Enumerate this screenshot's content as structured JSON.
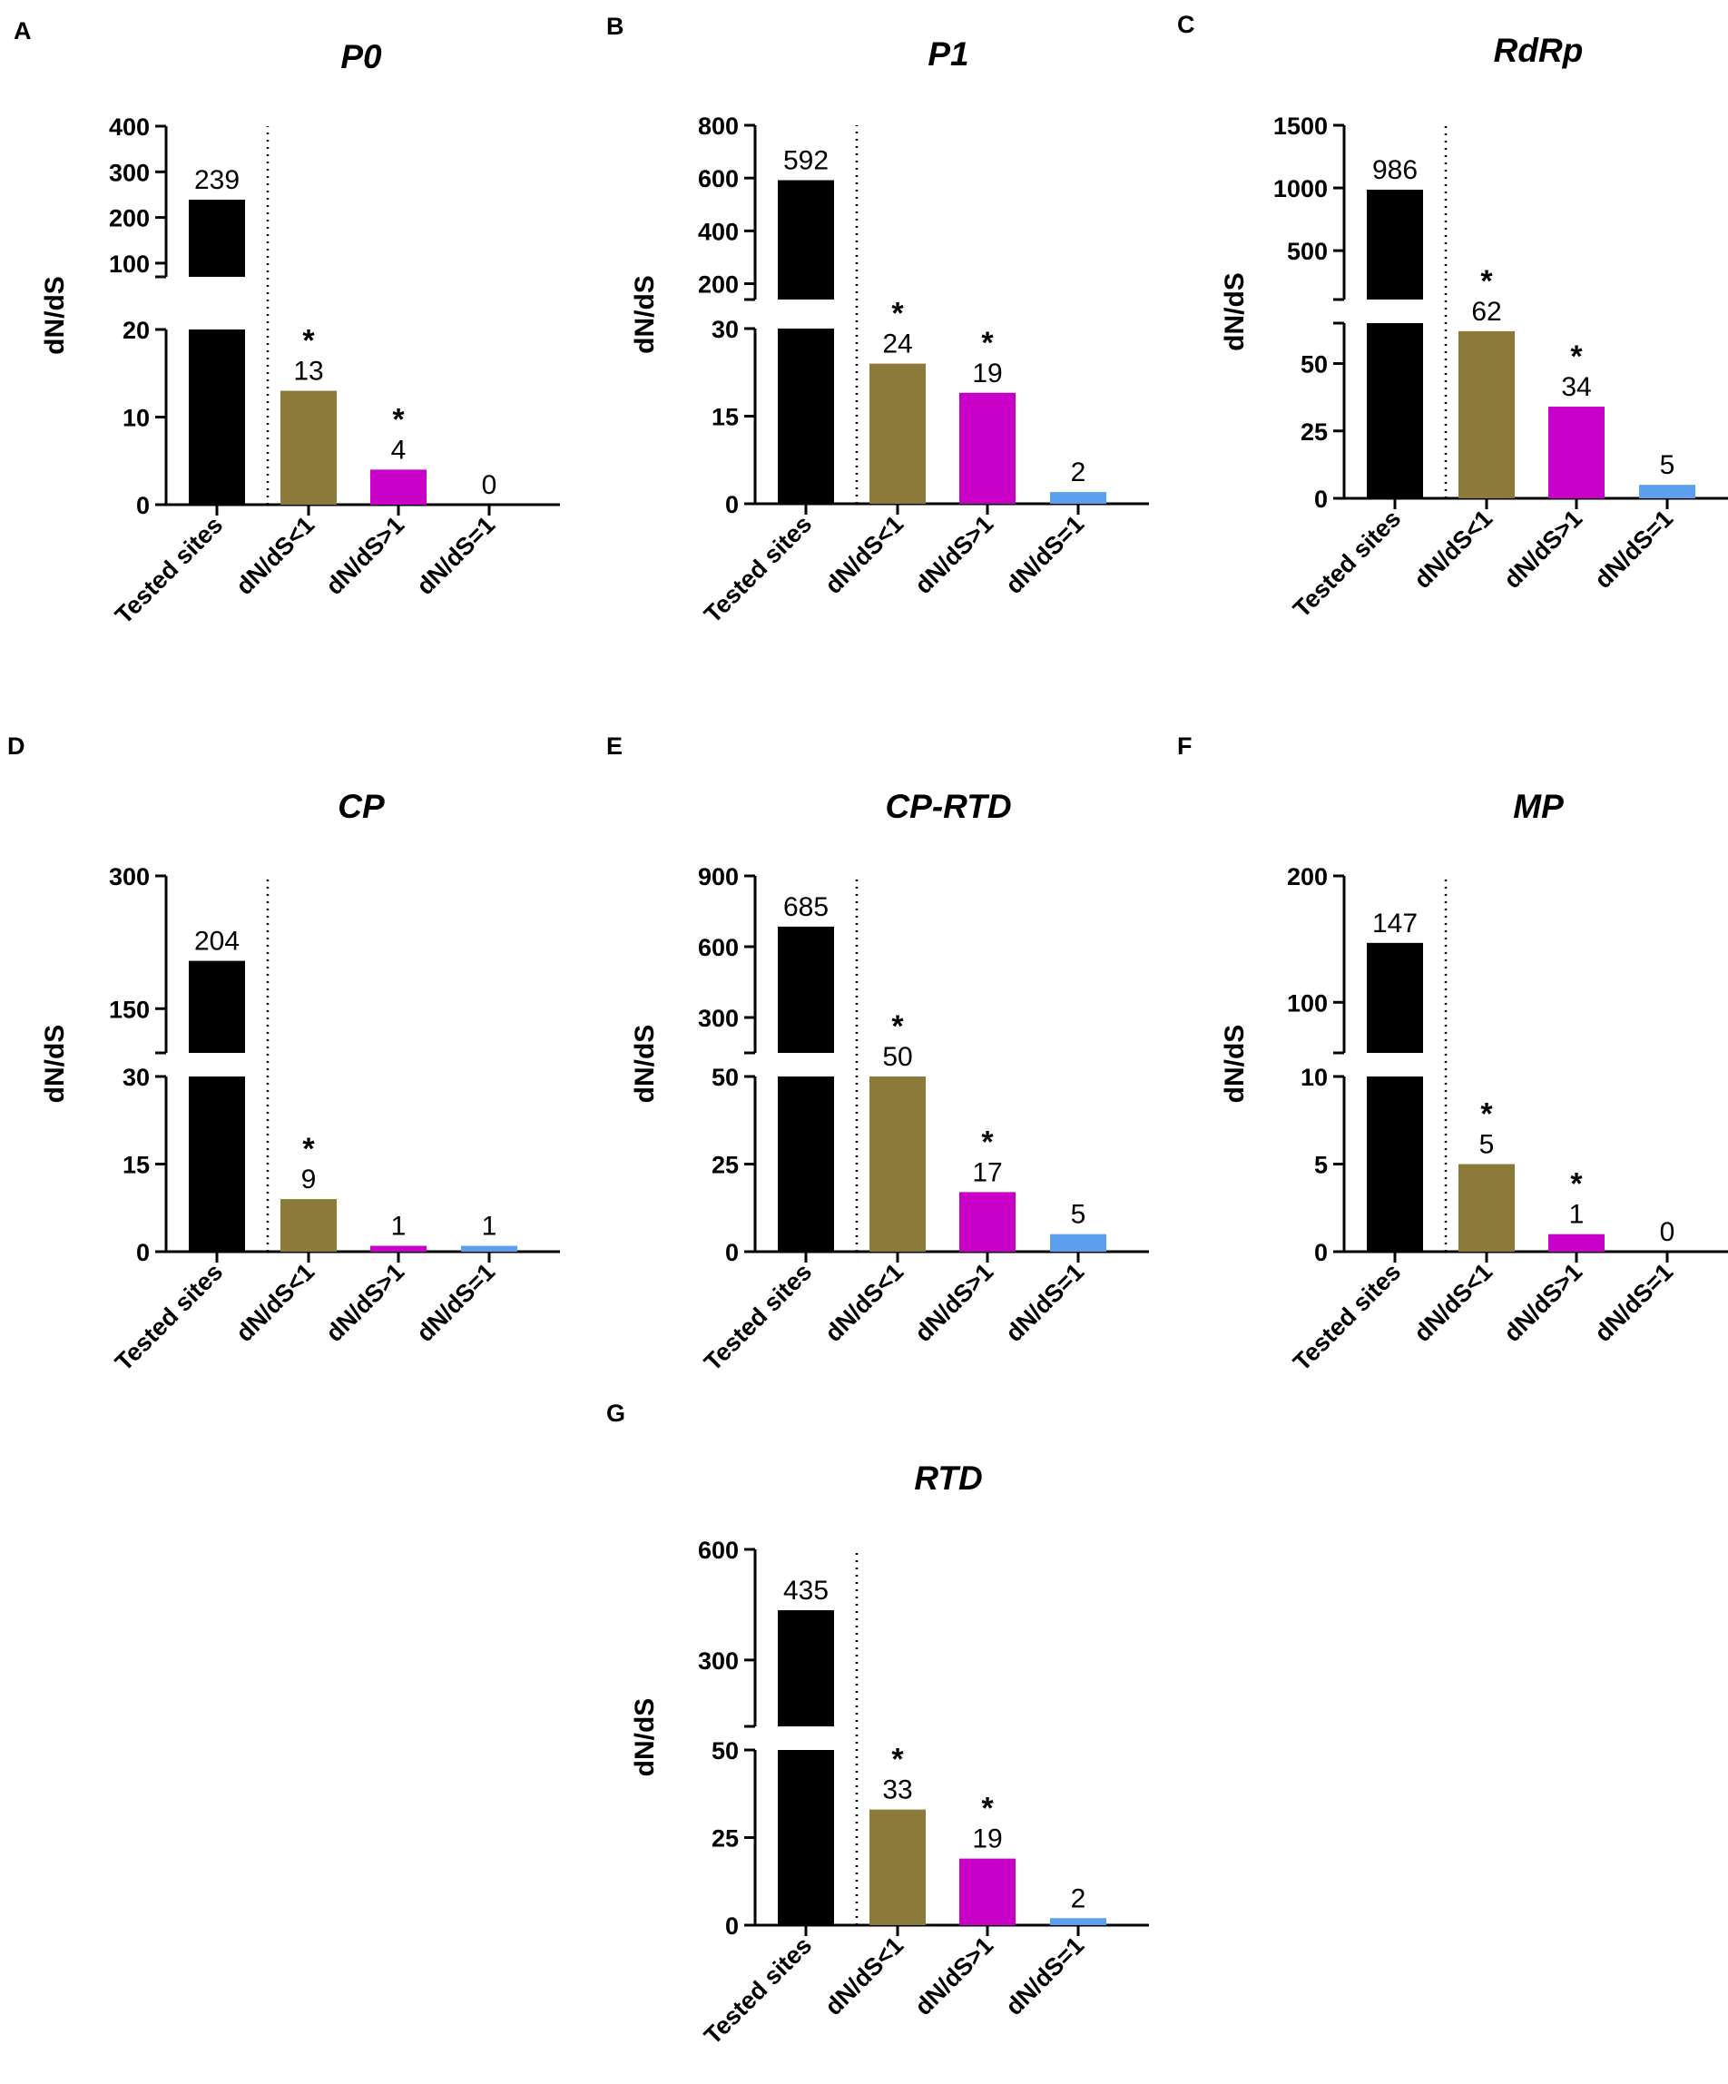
{
  "figure": {
    "ylabel": "dN/dS",
    "categories": [
      "Tested sites",
      "dN/dS<1",
      "dN/dS>1",
      "dN/dS=1"
    ],
    "colors": [
      "#000000",
      "#8b7a39",
      "#c800c8",
      "#5aa0ee"
    ]
  },
  "chart_data": [
    {
      "panel": "A",
      "type": "bar",
      "title": "P0",
      "ylabel": "dN/dS",
      "categories": [
        "Tested sites",
        "dN/dS<1",
        "dN/dS>1",
        "dN/dS=1"
      ],
      "values": [
        239,
        13,
        4,
        0
      ],
      "value_labels": [
        "239",
        "13",
        "4",
        "0"
      ],
      "significant": [
        false,
        true,
        true,
        false
      ],
      "axis_break": {
        "lower_range": [
          0,
          20
        ],
        "upper_range": [
          70,
          400
        ]
      },
      "lower_ticks": [
        "0",
        "10",
        "20"
      ],
      "lower_tick_values": [
        0,
        10,
        20
      ],
      "upper_ticks": [
        "100",
        "200",
        "300",
        "400"
      ],
      "upper_tick_values": [
        100,
        200,
        300,
        400
      ]
    },
    {
      "panel": "B",
      "type": "bar",
      "title": "P1",
      "ylabel": "dN/dS",
      "categories": [
        "Tested sites",
        "dN/dS<1",
        "dN/dS>1",
        "dN/dS=1"
      ],
      "values": [
        592,
        24,
        19,
        2
      ],
      "value_labels": [
        "592",
        "24",
        "19",
        "2"
      ],
      "significant": [
        false,
        true,
        true,
        false
      ],
      "axis_break": {
        "lower_range": [
          0,
          30
        ],
        "upper_range": [
          140,
          800
        ]
      },
      "lower_ticks": [
        "0",
        "15",
        "30"
      ],
      "lower_tick_values": [
        0,
        15,
        30
      ],
      "upper_ticks": [
        "200",
        "400",
        "600",
        "800"
      ],
      "upper_tick_values": [
        200,
        400,
        600,
        800
      ]
    },
    {
      "panel": "C",
      "type": "bar",
      "title": "RdRp",
      "ylabel": "dN/dS",
      "categories": [
        "Tested sites",
        "dN/dS<1",
        "dN/dS>1",
        "dN/dS=1"
      ],
      "values": [
        986,
        62,
        34,
        5
      ],
      "value_labels": [
        "986",
        "62",
        "34",
        "5"
      ],
      "significant": [
        false,
        true,
        true,
        false
      ],
      "axis_break": {
        "lower_range": [
          0,
          65
        ],
        "upper_range": [
          110,
          1500
        ]
      },
      "lower_ticks": [
        "0",
        "25",
        "50"
      ],
      "lower_tick_values": [
        0,
        25,
        50
      ],
      "upper_ticks": [
        "500",
        "1000",
        "1500"
      ],
      "upper_tick_values": [
        500,
        1000,
        1500
      ]
    },
    {
      "panel": "D",
      "type": "bar",
      "title": "CP",
      "ylabel": "dN/dS",
      "categories": [
        "Tested sites",
        "dN/dS<1",
        "dN/dS>1",
        "dN/dS=1"
      ],
      "values": [
        204,
        9,
        1,
        1
      ],
      "value_labels": [
        "204",
        "9",
        "1",
        "1"
      ],
      "significant": [
        false,
        true,
        false,
        false
      ],
      "axis_break": {
        "lower_range": [
          0,
          30
        ],
        "upper_range": [
          100,
          300
        ]
      },
      "lower_ticks": [
        "0",
        "15",
        "30"
      ],
      "lower_tick_values": [
        0,
        15,
        30
      ],
      "upper_ticks": [
        "150",
        "300"
      ],
      "upper_tick_values": [
        150,
        300
      ]
    },
    {
      "panel": "E",
      "type": "bar",
      "title": "CP-RTD",
      "ylabel": "dN/dS",
      "categories": [
        "Tested sites",
        "dN/dS<1",
        "dN/dS>1",
        "dN/dS=1"
      ],
      "values": [
        685,
        50,
        17,
        5
      ],
      "value_labels": [
        "685",
        "50",
        "17",
        "5"
      ],
      "significant": [
        false,
        true,
        true,
        false
      ],
      "axis_break": {
        "lower_range": [
          0,
          50
        ],
        "upper_range": [
          150,
          900
        ]
      },
      "lower_ticks": [
        "0",
        "25",
        "50"
      ],
      "lower_tick_values": [
        0,
        25,
        50
      ],
      "upper_ticks": [
        "300",
        "600",
        "900"
      ],
      "upper_tick_values": [
        300,
        600,
        900
      ]
    },
    {
      "panel": "F",
      "type": "bar",
      "title": "MP",
      "ylabel": "dN/dS",
      "categories": [
        "Tested sites",
        "dN/dS<1",
        "dN/dS>1",
        "dN/dS=1"
      ],
      "values": [
        147,
        5,
        1,
        0
      ],
      "value_labels": [
        "147",
        "5",
        "1",
        "0"
      ],
      "significant": [
        false,
        true,
        true,
        false
      ],
      "axis_break": {
        "lower_range": [
          0,
          10
        ],
        "upper_range": [
          60,
          200
        ]
      },
      "lower_ticks": [
        "0",
        "5",
        "10"
      ],
      "lower_tick_values": [
        0,
        5,
        10
      ],
      "upper_ticks": [
        "100",
        "200"
      ],
      "upper_tick_values": [
        100,
        200
      ]
    },
    {
      "panel": "G",
      "type": "bar",
      "title": "RTD",
      "ylabel": "dN/dS",
      "categories": [
        "Tested sites",
        "dN/dS<1",
        "dN/dS>1",
        "dN/dS=1"
      ],
      "values": [
        435,
        33,
        19,
        2
      ],
      "value_labels": [
        "435",
        "33",
        "19",
        "2"
      ],
      "significant": [
        false,
        true,
        true,
        false
      ],
      "axis_break": {
        "lower_range": [
          0,
          50
        ],
        "upper_range": [
          120,
          600
        ]
      },
      "lower_ticks": [
        "0",
        "25",
        "50"
      ],
      "lower_tick_values": [
        0,
        25,
        50
      ],
      "upper_ticks": [
        "300",
        "600"
      ],
      "upper_tick_values": [
        300,
        600
      ]
    }
  ]
}
